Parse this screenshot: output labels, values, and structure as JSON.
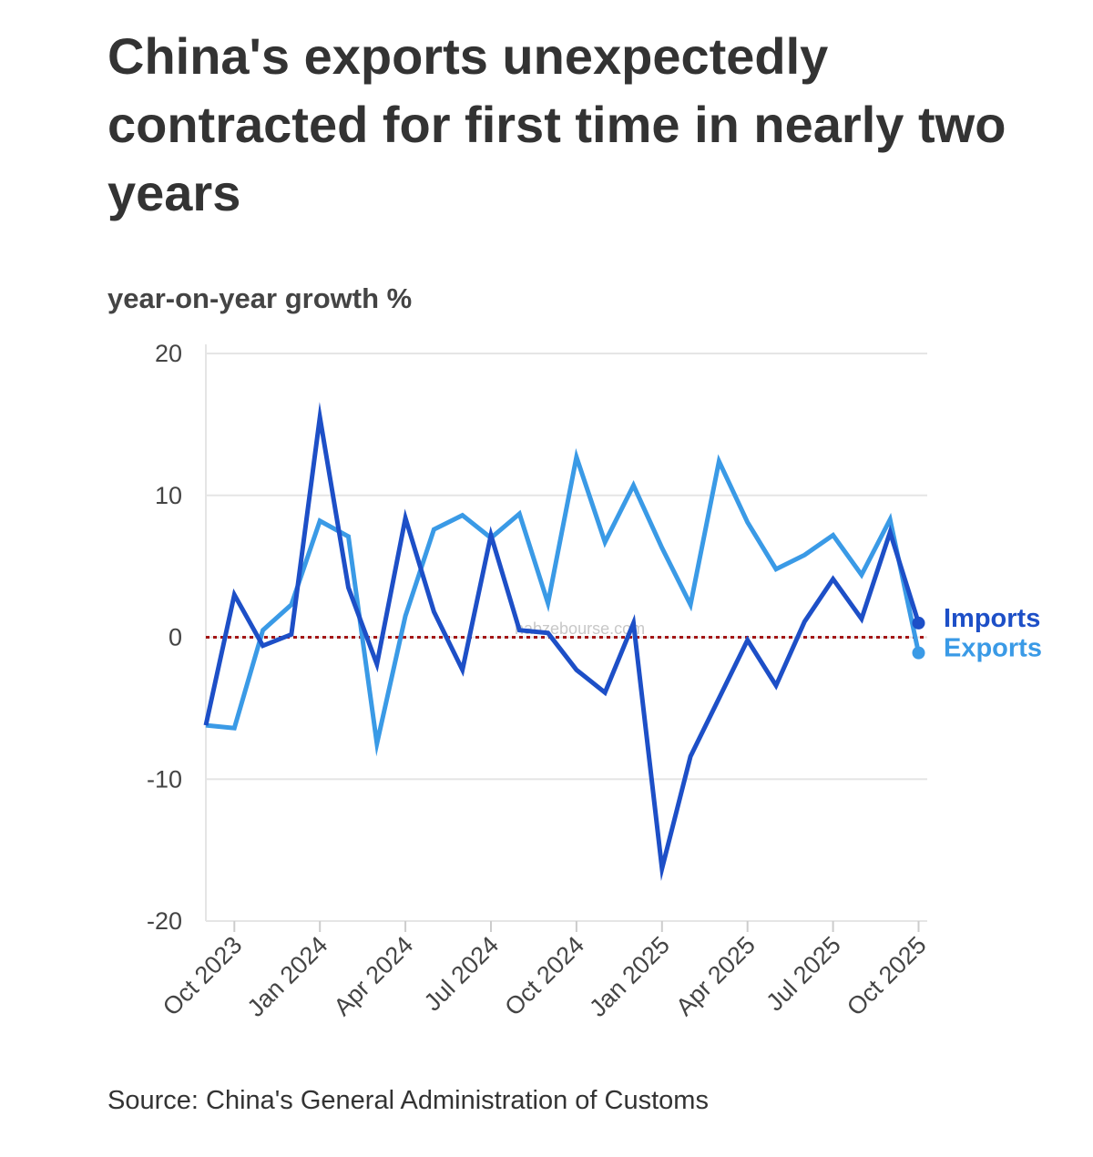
{
  "title": "China's exports unexpectedly contracted for first time in nearly two years",
  "source": "Source: China's General Administration of Customs",
  "watermark": "nabzebourse.com",
  "colors": {
    "imports": "#1d4fc7",
    "exports": "#3a9ae6",
    "zero_line": "#a31515",
    "grid": "#e5e5e5"
  },
  "chart_data": {
    "type": "line",
    "title": "China's exports unexpectedly contracted for first time in nearly two years",
    "ylabel": "year-on-year growth %",
    "xlabel": "",
    "ylim": [
      -20,
      20
    ],
    "yticks": [
      20,
      10,
      0,
      -10,
      -20
    ],
    "grid": true,
    "x": [
      "Sep 2023",
      "Oct 2023",
      "Nov 2023",
      "Dec 2023",
      "Jan 2024",
      "Feb 2024",
      "Mar 2024",
      "Apr 2024",
      "May 2024",
      "Jun 2024",
      "Jul 2024",
      "Aug 2024",
      "Sep 2024",
      "Oct 2024",
      "Nov 2024",
      "Dec 2024",
      "Jan 2025",
      "Feb 2025",
      "Mar 2025",
      "Apr 2025",
      "May 2025",
      "Jun 2025",
      "Jul 2025",
      "Aug 2025",
      "Sep 2025",
      "Oct 2025"
    ],
    "xtick_labels": [
      "Oct 2023",
      "Jan 2024",
      "Apr 2024",
      "Jul 2024",
      "Oct 2024",
      "Jan 2025",
      "Apr 2025",
      "Jul 2025",
      "Oct 2025"
    ],
    "series": [
      {
        "name": "Imports",
        "values": [
          -6.2,
          3.0,
          -0.6,
          0.2,
          15.5,
          3.5,
          -1.9,
          8.4,
          1.8,
          -2.3,
          7.2,
          0.5,
          0.3,
          -2.3,
          -3.9,
          1.0,
          -16.3,
          -8.4,
          -4.3,
          -0.2,
          -3.4,
          1.1,
          4.1,
          1.3,
          7.4,
          1.0
        ]
      },
      {
        "name": "Exports",
        "values": [
          -6.2,
          -6.4,
          0.5,
          2.3,
          8.2,
          7.1,
          -7.5,
          1.5,
          7.6,
          8.6,
          7.0,
          8.7,
          2.4,
          12.7,
          6.7,
          10.7,
          6.3,
          2.3,
          12.4,
          8.1,
          4.8,
          5.8,
          7.2,
          4.4,
          8.3,
          -1.1
        ]
      }
    ]
  }
}
